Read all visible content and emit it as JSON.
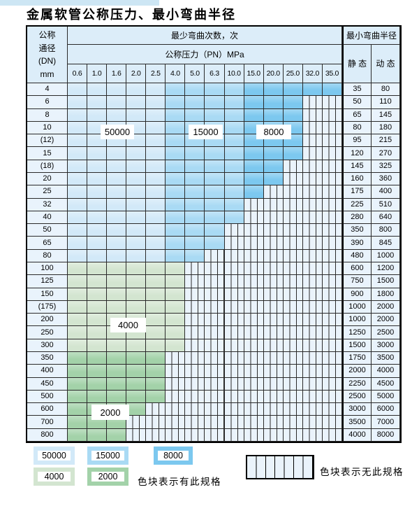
{
  "title": "金属软管公称压力、最小弯曲半径",
  "table": {
    "header": {
      "dn_label_lines": [
        "公称",
        "通径",
        "(DN)",
        "mm"
      ],
      "bend_cycles_label": "最少弯曲次数，次",
      "pressure_label": "公称压力（PN）MPa",
      "radius_label": "最小弯曲半径",
      "static_label": "静 态",
      "dynamic_label": "动 态",
      "pressure_columns": [
        "0.6",
        "1.0",
        "1.6",
        "2.0",
        "2.5",
        "4.0",
        "5.0",
        "6.3",
        "10.0",
        "15.0",
        "20.0",
        "25.0",
        "32.0",
        "35.0"
      ]
    },
    "rows": [
      {
        "dn": "4",
        "static": "35",
        "dynamic": "80",
        "last_col": 13,
        "palette": "blue"
      },
      {
        "dn": "6",
        "static": "50",
        "dynamic": "110",
        "last_col": 11,
        "palette": "blue"
      },
      {
        "dn": "8",
        "static": "65",
        "dynamic": "145",
        "last_col": 11,
        "palette": "blue"
      },
      {
        "dn": "10",
        "static": "80",
        "dynamic": "180",
        "last_col": 11,
        "palette": "blue"
      },
      {
        "dn": "(12)",
        "static": "95",
        "dynamic": "215",
        "last_col": 11,
        "palette": "blue"
      },
      {
        "dn": "15",
        "static": "120",
        "dynamic": "270",
        "last_col": 11,
        "palette": "blue"
      },
      {
        "dn": "(18)",
        "static": "145",
        "dynamic": "325",
        "last_col": 10,
        "palette": "blue"
      },
      {
        "dn": "20",
        "static": "160",
        "dynamic": "360",
        "last_col": 10,
        "palette": "blue"
      },
      {
        "dn": "25",
        "static": "175",
        "dynamic": "400",
        "last_col": 9,
        "palette": "blue"
      },
      {
        "dn": "32",
        "static": "225",
        "dynamic": "510",
        "last_col": 8,
        "palette": "blue"
      },
      {
        "dn": "40",
        "static": "280",
        "dynamic": "640",
        "last_col": 8,
        "palette": "blue"
      },
      {
        "dn": "50",
        "static": "350",
        "dynamic": "800",
        "last_col": 7,
        "palette": "blue"
      },
      {
        "dn": "65",
        "static": "390",
        "dynamic": "845",
        "last_col": 7,
        "palette": "blue"
      },
      {
        "dn": "80",
        "static": "480",
        "dynamic": "1000",
        "last_col": 6,
        "palette": "blue"
      },
      {
        "dn": "100",
        "static": "600",
        "dynamic": "1200",
        "last_col": 5,
        "palette": "green_light"
      },
      {
        "dn": "125",
        "static": "750",
        "dynamic": "1500",
        "last_col": 5,
        "palette": "green_light"
      },
      {
        "dn": "150",
        "static": "900",
        "dynamic": "1800",
        "last_col": 5,
        "palette": "green_light"
      },
      {
        "dn": "(175)",
        "static": "1000",
        "dynamic": "2000",
        "last_col": 5,
        "palette": "green_light"
      },
      {
        "dn": "200",
        "static": "1000",
        "dynamic": "2000",
        "last_col": 5,
        "palette": "green_light"
      },
      {
        "dn": "250",
        "static": "1250",
        "dynamic": "2500",
        "last_col": 5,
        "palette": "green_light"
      },
      {
        "dn": "300",
        "static": "1500",
        "dynamic": "3000",
        "last_col": 5,
        "palette": "green_light"
      },
      {
        "dn": "350",
        "static": "1750",
        "dynamic": "3500",
        "last_col": 4,
        "palette": "green_dark"
      },
      {
        "dn": "400",
        "static": "2000",
        "dynamic": "4000",
        "last_col": 4,
        "palette": "green_dark"
      },
      {
        "dn": "450",
        "static": "2250",
        "dynamic": "4500",
        "last_col": 4,
        "palette": "green_dark"
      },
      {
        "dn": "500",
        "static": "2500",
        "dynamic": "5000",
        "last_col": 4,
        "palette": "green_dark"
      },
      {
        "dn": "600",
        "static": "3000",
        "dynamic": "6000",
        "last_col": 3,
        "palette": "green_dark"
      },
      {
        "dn": "700",
        "static": "3500",
        "dynamic": "7000",
        "last_col": 2,
        "palette": "green_dark"
      },
      {
        "dn": "800",
        "static": "4000",
        "dynamic": "8000",
        "last_col": 2,
        "palette": "green_dark"
      }
    ],
    "blue_zone_bounds": {
      "light_end_col": 4,
      "medium_end_col": 8
    }
  },
  "overlay_labels": [
    {
      "text": "50000"
    },
    {
      "text": "15000"
    },
    {
      "text": "8000"
    },
    {
      "text": "4000"
    },
    {
      "text": "2000"
    }
  ],
  "legend": {
    "items": [
      {
        "label": "50000",
        "color_key": "blue_light"
      },
      {
        "label": "15000",
        "color_key": "blue_med"
      },
      {
        "label": "8000",
        "color_key": "blue_dark"
      },
      {
        "label": "4000",
        "color_key": "green_light"
      },
      {
        "label": "2000",
        "color_key": "green_dark"
      }
    ],
    "has_spec_text": "色块表示有此规格",
    "no_spec_text": "色块表示无此规格"
  },
  "colors": {
    "blue_light": "#d2e9f8",
    "blue_med": "#a9daf4",
    "blue_dark": "#7cc8ef",
    "green_light": "#d3e5d0",
    "green_dark": "#a3d2a9",
    "striped_bg": "#eaf3fb",
    "grid_line": "#2a2a2a",
    "header_bg": "#dcedf9",
    "label_cell_bg": "#e9f3fc",
    "artifact_strip": "#cde6f4"
  }
}
